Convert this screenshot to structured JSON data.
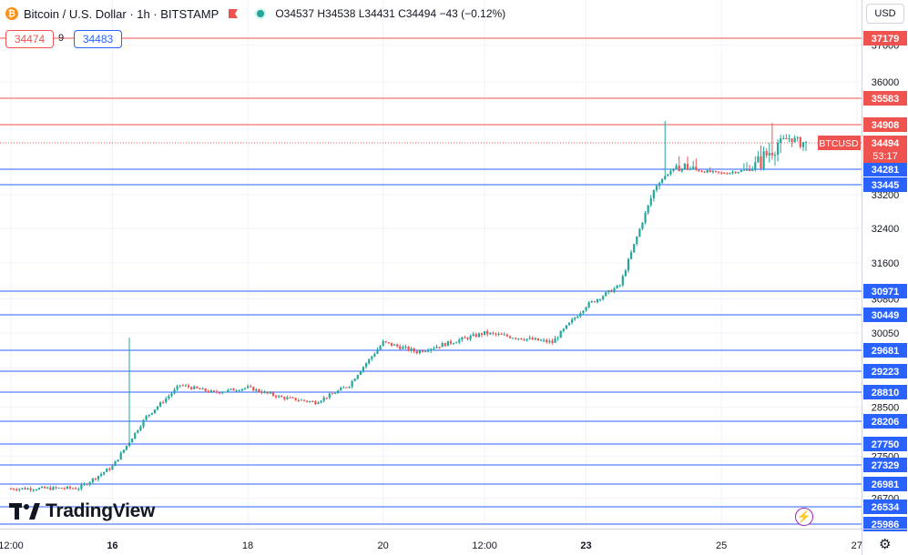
{
  "header": {
    "symbol_text": "Bitcoin / U.S. Dollar · 1h · BITSTAMP",
    "ohlc_text": "O34537 H34538 L34431 C34494 −43 (−0.12%)"
  },
  "currency_button": "USD",
  "trade": {
    "sell": "34474",
    "spread": "9",
    "buy": "34483"
  },
  "logo_text": "TradingView",
  "icons": [
    "bitcoin-icon",
    "flag-icon",
    "status-dot-icon",
    "tradingview-logo-icon",
    "lightning-icon",
    "gear-icon"
  ],
  "colors": {
    "up": "#26a69a",
    "down": "#ef5350",
    "support": "#2962ff",
    "resistance": "#ef5350",
    "price_label": "#ef5350"
  },
  "chart_data": {
    "type": "candlestick",
    "title": "Bitcoin / U.S. Dollar · 1h · BITSTAMP",
    "x_ticks": [
      "12:00",
      "16",
      "18",
      "20",
      "12:00",
      "23",
      "25",
      "27"
    ],
    "y_ticks": [
      37000,
      36000,
      33200,
      32400,
      31600,
      30800,
      30050,
      29300,
      28500,
      27500,
      26700
    ],
    "resistance_levels": [
      37179,
      35583,
      34908
    ],
    "support_levels": [
      34281,
      33445,
      30971,
      30449,
      29681,
      29223,
      28810,
      28206,
      27750,
      27329,
      26981,
      26534,
      25986
    ],
    "last_price": {
      "symbol": "BTCUSD",
      "value": 34494,
      "countdown": "53:17"
    },
    "ylim": [
      25986,
      37600
    ],
    "price_path": [
      {
        "x": "Jul 14 12:00",
        "y": 26890
      },
      {
        "x": "Jul 15 12:00",
        "y": 26900
      },
      {
        "x": "Jul 16",
        "y": 27300
      },
      {
        "x": "Jul 16 12:00",
        "y": 28300
      },
      {
        "x": "Jul 17",
        "y": 28950
      },
      {
        "x": "Jul 17 12:00",
        "y": 28800
      },
      {
        "x": "Jul 18",
        "y": 28900
      },
      {
        "x": "Jul 18 12:00",
        "y": 28700
      },
      {
        "x": "Jul 19",
        "y": 28600
      },
      {
        "x": "Jul 19 12:00",
        "y": 28950
      },
      {
        "x": "Jul 20",
        "y": 29850
      },
      {
        "x": "Jul 20 12:00",
        "y": 29650
      },
      {
        "x": "Jul 21",
        "y": 29850
      },
      {
        "x": "Jul 21 12:00",
        "y": 30050
      },
      {
        "x": "Jul 22",
        "y": 29950
      },
      {
        "x": "Jul 22 12:00",
        "y": 29850
      },
      {
        "x": "Jul 23",
        "y": 30650
      },
      {
        "x": "Jul 23 12:00",
        "y": 31100
      },
      {
        "x": "Jul 24",
        "y": 33300
      },
      {
        "x": "Jul 24 06:00",
        "y": 34200
      },
      {
        "x": "Jul 24 12:00",
        "y": 34300
      },
      {
        "x": "Jul 25",
        "y": 34050
      },
      {
        "x": "Jul 25 12:00",
        "y": 34300
      },
      {
        "x": "Jul 26",
        "y": 34600
      },
      {
        "x": "Jul 26 06:00",
        "y": 34494
      }
    ],
    "spikes": [
      {
        "x": "Jul 16 06:00",
        "high": 29950
      },
      {
        "x": "Jul 24 04:00",
        "high": 35000
      },
      {
        "x": "Jul 25 18:00",
        "high": 34950
      }
    ],
    "grid": true
  }
}
